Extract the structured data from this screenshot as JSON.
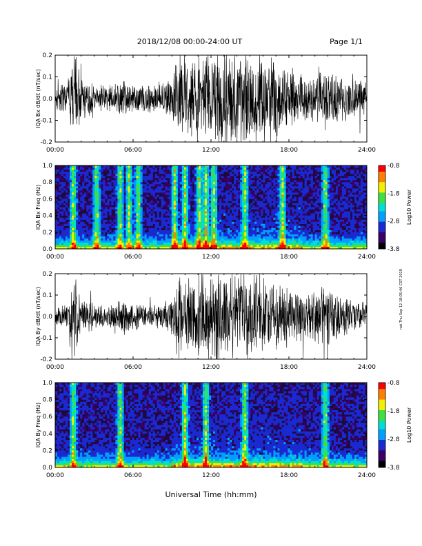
{
  "header": {
    "title": "2018/12/08  00:00-24:00 UT",
    "page": "Page 1/1"
  },
  "x_axis_title": "Universal Time (hh:mm)",
  "side_note": "nat Thu Sep 12 18:05:46 CST 2019",
  "colorbar": {
    "label": "Log10 Power",
    "ticks": [
      "-0.8",
      "-1.8",
      "-2.8",
      "-3.8"
    ]
  },
  "colors": {
    "trace": "#000000",
    "spectrogram_background": "#1c0a3a",
    "colormap": [
      "#000000",
      "#3a0066",
      "#1a2ad0",
      "#00a0ff",
      "#00e0d0",
      "#40e040",
      "#f0f000",
      "#ff8000",
      "#ff0000"
    ]
  },
  "chart_data": [
    {
      "type": "line",
      "title": "",
      "xlabel": "",
      "ylabel": "IQA Bx dB/dt (nT/sec)",
      "xlim": [
        0,
        24
      ],
      "ylim": [
        -0.2,
        0.2
      ],
      "xticks": [
        "00:00",
        "06:00",
        "12:00",
        "18:00",
        "24:00"
      ],
      "yticks": [
        "0.2",
        "0.1",
        "0.0",
        "-0.1",
        "-0.2"
      ],
      "envelope_x": [
        0,
        1,
        1.5,
        2,
        3,
        4,
        5,
        6,
        7,
        8,
        9,
        9.5,
        10,
        11,
        12,
        13,
        14,
        15,
        16,
        17,
        18,
        19,
        20,
        21,
        22,
        23,
        24
      ],
      "envelope": [
        0.05,
        0.08,
        0.2,
        0.1,
        0.06,
        0.05,
        0.08,
        0.07,
        0.06,
        0.07,
        0.09,
        0.2,
        0.15,
        0.2,
        0.2,
        0.2,
        0.2,
        0.2,
        0.2,
        0.18,
        0.14,
        0.1,
        0.12,
        0.15,
        0.1,
        0.08,
        0.07
      ]
    },
    {
      "type": "heatmap",
      "title": "",
      "xlabel": "",
      "ylabel": "IQA Bx Freq (Hz)",
      "xlim": [
        0,
        24
      ],
      "ylim": [
        0,
        1.0
      ],
      "zlim": [
        -3.8,
        -0.8
      ],
      "xticks": [
        "00:00",
        "06:00",
        "12:00",
        "18:00",
        "24:00"
      ],
      "yticks": [
        "1.0",
        "0.8",
        "0.6",
        "0.4",
        "0.2",
        "0.0"
      ],
      "bright_bands_hr": [
        1.4,
        3.2,
        5.0,
        5.7,
        6.4,
        9.2,
        10.0,
        11.1,
        11.6,
        12.2,
        14.6,
        17.5,
        20.8
      ]
    },
    {
      "type": "line",
      "title": "",
      "xlabel": "",
      "ylabel": "IQA By dB/dt (nT/sec)",
      "xlim": [
        0,
        24
      ],
      "ylim": [
        -0.2,
        0.2
      ],
      "xticks": [
        "00:00",
        "06:00",
        "12:00",
        "18:00",
        "24:00"
      ],
      "yticks": [
        "0.2",
        "0.1",
        "0.0",
        "-0.1",
        "-0.2"
      ],
      "envelope_x": [
        0,
        1,
        1.5,
        2,
        3,
        4,
        5,
        6,
        7,
        8,
        9,
        9.5,
        10,
        11,
        12,
        13,
        14,
        15,
        16,
        17,
        18,
        19,
        20,
        21,
        22,
        23,
        24
      ],
      "envelope": [
        0.04,
        0.06,
        0.2,
        0.09,
        0.05,
        0.05,
        0.09,
        0.07,
        0.05,
        0.06,
        0.08,
        0.2,
        0.14,
        0.2,
        0.2,
        0.2,
        0.2,
        0.19,
        0.18,
        0.15,
        0.13,
        0.1,
        0.12,
        0.14,
        0.09,
        0.07,
        0.06
      ]
    },
    {
      "type": "heatmap",
      "title": "",
      "xlabel": "Universal Time (hh:mm)",
      "ylabel": "IQA By Freq (Hz)",
      "xlim": [
        0,
        24
      ],
      "ylim": [
        0,
        1.0
      ],
      "zlim": [
        -3.8,
        -0.8
      ],
      "xticks": [
        "00:00",
        "06:00",
        "12:00",
        "18:00",
        "24:00"
      ],
      "yticks": [
        "1.0",
        "0.8",
        "0.6",
        "0.4",
        "0.2",
        "0.0"
      ],
      "bright_bands_hr": [
        1.4,
        5.0,
        10.0,
        11.6,
        14.6,
        20.8
      ]
    }
  ]
}
